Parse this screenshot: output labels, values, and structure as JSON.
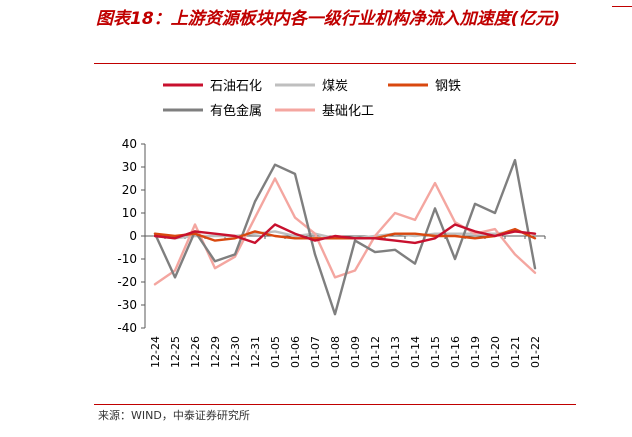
{
  "title": "图表18：上游资源板块内各一级行业机构净流入加速度(亿元)",
  "source": "来源：WIND，中泰证券研究所",
  "chart_data": {
    "type": "line",
    "title": "图表18：上游资源板块内各一级行业机构净流入加速度(亿元)",
    "xlabel": "",
    "ylabel": "",
    "ylim": [
      -40,
      40
    ],
    "yticks": [
      40,
      30,
      20,
      10,
      0,
      -10,
      -20,
      -30,
      -40
    ],
    "grid": false,
    "legend_position": "top",
    "x": [
      "12-24",
      "12-25",
      "12-26",
      "12-29",
      "12-30",
      "12-31",
      "01-05",
      "01-06",
      "01-07",
      "01-08",
      "01-09",
      "01-12",
      "01-13",
      "01-14",
      "01-15",
      "01-16",
      "01-19",
      "01-20",
      "01-21",
      "01-22"
    ],
    "series": [
      {
        "name": "石油石化",
        "color": "#c8102e",
        "values": [
          0,
          -1,
          2,
          1,
          0,
          -3,
          5,
          1,
          -2,
          0,
          -1,
          -1,
          -2,
          -3,
          -1,
          5,
          2,
          0,
          2,
          1
        ]
      },
      {
        "name": "煤炭",
        "color": "#bfbfbf",
        "values": [
          0,
          -1,
          0,
          0,
          0,
          1,
          2,
          0,
          1,
          -1,
          -1,
          0,
          1,
          0,
          1,
          1,
          1,
          1,
          2,
          1
        ]
      },
      {
        "name": "钢铁",
        "color": "#d9480f",
        "values": [
          1,
          0,
          1,
          -2,
          -1,
          2,
          0,
          -1,
          -1,
          -1,
          -1,
          -1,
          1,
          1,
          0,
          0,
          -1,
          0,
          3,
          -1
        ]
      },
      {
        "name": "有色金属",
        "color": "#7f7f7f",
        "values": [
          1,
          -18,
          2,
          -11,
          -8,
          15,
          31,
          27,
          -8,
          -34,
          -2,
          -7,
          -6,
          -12,
          12,
          -10,
          14,
          10,
          33,
          -14
        ]
      },
      {
        "name": "基础化工",
        "color": "#f4a6a0",
        "values": [
          -21,
          -15,
          5,
          -14,
          -9,
          8,
          25,
          8,
          1,
          -18,
          -15,
          0,
          10,
          7,
          23,
          6,
          1,
          3,
          -8,
          -16
        ]
      }
    ]
  }
}
